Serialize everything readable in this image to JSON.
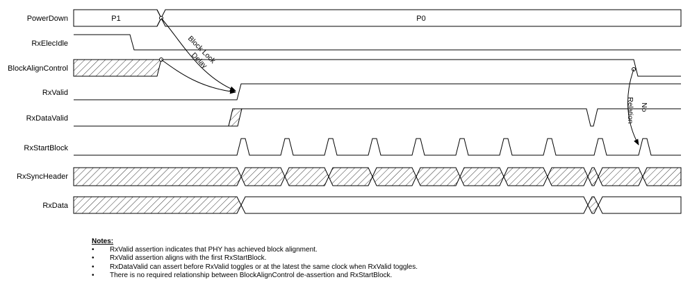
{
  "signals": {
    "power_down": "PowerDown",
    "rx_elec_idle": "RxElecIdle",
    "block_align_control": "BlockAlignControl",
    "rx_valid": "RxValid",
    "rx_data_valid": "RxDataValid",
    "rx_start_block": "RxStartBlock",
    "rx_sync_header": "RxSyncHeader",
    "rx_data": "RxData"
  },
  "states": {
    "p1": "P1",
    "p0": "P0"
  },
  "annotations": {
    "block_lock_delay": [
      "Block Lock",
      "Delay"
    ],
    "no_relation": [
      "No",
      "Relation"
    ]
  },
  "notes": {
    "title": "Notes:",
    "items": [
      "RxValid assertion indicates that PHY has achieved block alignment.",
      "RxValid assertion aligns with the first RxStartBlock.",
      "RxDataValid can assert before RxValid toggles or at the latest the same clock when RxValid toggles.",
      "There is no required relationship between BlockAlignControl de-assertion and RxStartBlock."
    ]
  }
}
